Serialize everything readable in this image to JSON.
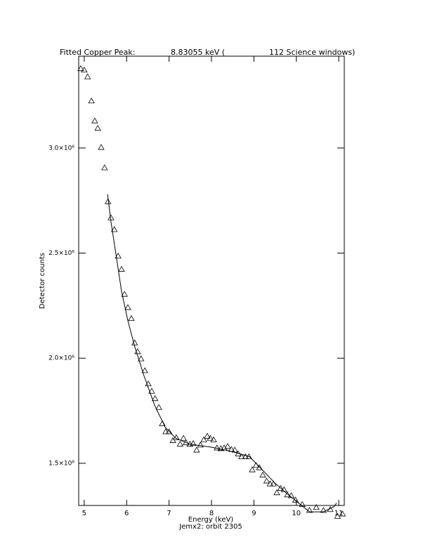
{
  "chart_data": {
    "type": "scatter",
    "title_parts": [
      "Fitted Copper Peak:",
      "8.83055 keV (",
      "112 Science windows)"
    ],
    "xlabel": "Energy (keV)",
    "subtitle": "Jemx2: orbit 2305",
    "ylabel": "Detector counts",
    "xlim": [
      4.87,
      11.13
    ],
    "ylim": [
      1299300,
      3437000
    ],
    "xticks": [
      5,
      6,
      7,
      8,
      9,
      10,
      11
    ],
    "yticks": [
      {
        "value": 1500000,
        "label": "1.5×10⁶"
      },
      {
        "value": 2000000,
        "label": "2.0×10⁶"
      },
      {
        "value": 2500000,
        "label": "2.5×10⁶"
      },
      {
        "value": 3000000,
        "label": "3.0×10⁶"
      }
    ],
    "series": [
      {
        "mode": "markers",
        "marker": "triangle",
        "color": "#000000",
        "x": [
          4.92,
          5.0,
          5.08,
          5.17,
          5.25,
          5.32,
          5.4,
          5.48,
          5.56,
          5.63,
          5.71,
          5.8,
          5.88,
          5.95,
          6.03,
          6.11,
          6.19,
          6.26,
          6.34,
          6.43,
          6.51,
          6.59,
          6.67,
          6.76,
          6.84,
          6.92,
          7.0,
          7.09,
          7.17,
          7.26,
          7.34,
          7.4,
          7.49,
          7.57,
          7.65,
          7.74,
          7.82,
          7.9,
          7.97,
          8.05,
          8.13,
          8.22,
          8.3,
          8.38,
          8.47,
          8.55,
          8.63,
          8.71,
          8.8,
          8.88,
          8.96,
          9.05,
          9.13,
          9.21,
          9.3,
          9.38,
          9.46,
          9.54,
          9.63,
          9.71,
          9.79,
          9.88,
          9.98,
          10.14,
          10.31,
          10.47,
          10.64,
          10.8,
          10.97,
          11.09
        ],
        "values": [
          3378000,
          3371000,
          3339000,
          3224000,
          3129000,
          3094000,
          3003000,
          2906000,
          2745000,
          2668000,
          2612000,
          2486000,
          2423000,
          2304000,
          2241000,
          2189000,
          2073000,
          2031000,
          1997000,
          1941000,
          1878000,
          1843000,
          1808000,
          1766000,
          1689000,
          1650000,
          1650000,
          1608000,
          1622000,
          1591000,
          1619000,
          1598000,
          1591000,
          1594000,
          1563000,
          1587000,
          1612000,
          1629000,
          1619000,
          1612000,
          1573000,
          1570000,
          1573000,
          1580000,
          1566000,
          1563000,
          1545000,
          1531000,
          1531000,
          1531000,
          1469000,
          1490000,
          1479000,
          1444000,
          1416000,
          1402000,
          1402000,
          1360000,
          1381000,
          1374000,
          1350000,
          1346000,
          1325000,
          1304000,
          1276000,
          1290000,
          1276000,
          1280000,
          1248000,
          1259000
        ]
      },
      {
        "mode": "line",
        "color": "#000000",
        "x": [
          5.55,
          5.63,
          5.75,
          5.88,
          6.03,
          6.19,
          6.41,
          6.66,
          6.91,
          7.16,
          7.49,
          7.99,
          8.48,
          8.9,
          9.15,
          9.48,
          9.81,
          10.14,
          10.31,
          10.64,
          10.89,
          10.95
        ],
        "values": [
          2780000,
          2650000,
          2493000,
          2318000,
          2178000,
          2056000,
          1916000,
          1776000,
          1671000,
          1619000,
          1591000,
          1577000,
          1556000,
          1531000,
          1479000,
          1409000,
          1350000,
          1297000,
          1269000,
          1269000,
          1294000,
          1311000
        ]
      }
    ]
  }
}
